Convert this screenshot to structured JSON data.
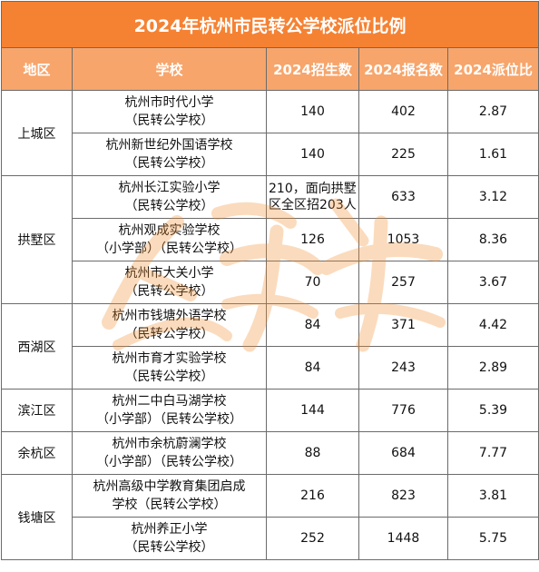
{
  "title": "2024年杭州市民转公学校派位比例",
  "headers": {
    "district": "地区",
    "school": "学校",
    "plan": "2024招生数",
    "applicants": "2024报名数",
    "ratio": "2024派位比"
  },
  "districts": [
    "上城区",
    "拱墅区",
    "西湖区",
    "滨江区",
    "余杭区",
    "钱塘区"
  ],
  "rows": [
    {
      "school_l1": "杭州市时代小学",
      "school_l2": "（民转公学校）",
      "plan": "140",
      "applicants": "402",
      "ratio": "2.87"
    },
    {
      "school_l1": "杭州新世纪外国语学校",
      "school_l2": "（民转公学校）",
      "plan": "140",
      "applicants": "225",
      "ratio": "1.61"
    },
    {
      "school_l1": "杭州长江实验小学",
      "school_l2": "（民转公学校）",
      "plan": "210，面向拱墅区全区招203人",
      "applicants": "633",
      "ratio": "3.12"
    },
    {
      "school_l1": "杭州观成实验学校",
      "school_l2": "（小学部）（民转公学校）",
      "plan": "126",
      "applicants": "1053",
      "ratio": "8.36"
    },
    {
      "school_l1": "杭州市大关小学",
      "school_l2": "（民转公学校）",
      "plan": "70",
      "applicants": "257",
      "ratio": "3.67"
    },
    {
      "school_l1": "杭州市钱塘外语学校",
      "school_l2": "（民转公学校）",
      "plan": "84",
      "applicants": "371",
      "ratio": "4.42"
    },
    {
      "school_l1": "杭州市育才实验学校",
      "school_l2": "（民转公学校）",
      "plan": "84",
      "applicants": "243",
      "ratio": "2.89"
    },
    {
      "school_l1": "杭州二中白马湖学校",
      "school_l2": "（小学部）（民转公学校）",
      "plan": "144",
      "applicants": "776",
      "ratio": "5.39"
    },
    {
      "school_l1": "杭州市余杭蔚澜学校",
      "school_l2": "（小学部）（民转公学校）",
      "plan": "88",
      "applicants": "684",
      "ratio": "7.77"
    },
    {
      "school_l1": "杭州高级中学教育集团启成",
      "school_l2": "学校（民转公学校）",
      "plan": "216",
      "applicants": "823",
      "ratio": "3.81"
    },
    {
      "school_l1": "杭州养正小学",
      "school_l2": "（民转公学校）",
      "plan": "252",
      "applicants": "1448",
      "ratio": "5.75"
    }
  ],
  "colors": {
    "title_bg": "#f58233",
    "header_bg": "#f7a56b",
    "watermark": "#f28c28"
  },
  "watermark_icon": "calligraphy-watermark-icon"
}
